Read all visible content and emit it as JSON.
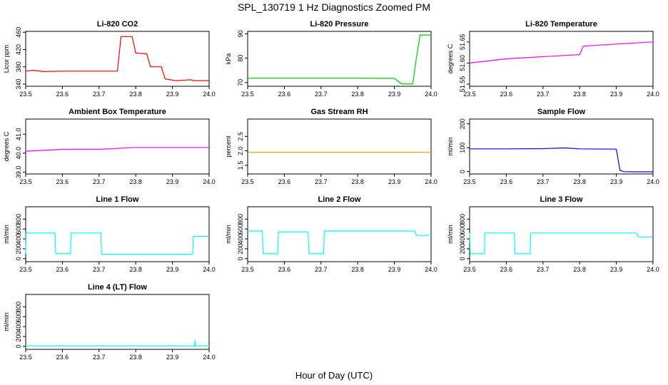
{
  "figure": {
    "title": "SPL_130719  1 Hz Diagnostics Zoomed PM",
    "xlabel": "Hour of Day (UTC)"
  },
  "chart_data": [
    {
      "type": "line",
      "title": "Li-820 CO2",
      "ylabel": "Licor ppm",
      "color": "#ff0000",
      "xlim": [
        23.5,
        24.0
      ],
      "ylim": [
        335,
        462
      ],
      "xticks": [
        "23.5",
        "23.6",
        "23.7",
        "23.8",
        "23.9",
        "24.0"
      ],
      "yticks": [
        340,
        380,
        420,
        460
      ],
      "x": [
        23.5,
        23.52,
        23.55,
        23.6,
        23.65,
        23.7,
        23.75,
        23.76,
        23.79,
        23.8,
        23.83,
        23.84,
        23.87,
        23.88,
        23.91,
        23.95,
        23.96,
        23.97,
        24.0
      ],
      "y": [
        370,
        372,
        369,
        370,
        370,
        370,
        370,
        450,
        450,
        412,
        410,
        380,
        380,
        352,
        348,
        350,
        348,
        348,
        348
      ]
    },
    {
      "type": "line",
      "title": "Li-820 Pressure",
      "ylabel": "kPa",
      "color": "#00cc00",
      "xlim": [
        23.5,
        24.0
      ],
      "ylim": [
        68.5,
        91
      ],
      "xticks": [
        "23.5",
        "23.6",
        "23.7",
        "23.8",
        "23.9",
        "24.0"
      ],
      "yticks": [
        70,
        80,
        90
      ],
      "x": [
        23.5,
        23.6,
        23.7,
        23.8,
        23.9,
        23.92,
        23.95,
        23.96,
        23.97,
        23.98,
        24.0
      ],
      "y": [
        71.8,
        71.8,
        71.8,
        71.8,
        71.7,
        69.5,
        69.4,
        80,
        89.5,
        89.5,
        89.5
      ]
    },
    {
      "type": "line",
      "title": "Li-820 Temperature",
      "ylabel": "degrees C",
      "color": "#ff00ff",
      "xlim": [
        23.5,
        24.0
      ],
      "ylim": [
        51.545,
        51.675
      ],
      "xticks": [
        "23.5",
        "23.6",
        "23.7",
        "23.8",
        "23.9",
        "24.0"
      ],
      "yticks": [
        "51.55",
        "51.60",
        "51.65"
      ],
      "x": [
        23.5,
        23.55,
        23.6,
        23.7,
        23.8,
        23.81,
        23.9,
        24.0
      ],
      "y": [
        51.6,
        51.605,
        51.61,
        51.615,
        51.62,
        51.64,
        51.645,
        51.65
      ]
    },
    {
      "type": "line",
      "title": "Ambient Box Temperature",
      "ylabel": "degrees C",
      "color": "#ff00ff",
      "xlim": [
        23.5,
        24.0
      ],
      "ylim": [
        38.9,
        41.8
      ],
      "xticks": [
        "23.5",
        "23.6",
        "23.7",
        "23.8",
        "23.9",
        "24.0"
      ],
      "yticks": [
        "39.0",
        "40.0",
        "41.0"
      ],
      "x": [
        23.5,
        23.6,
        23.7,
        23.8,
        23.9,
        24.0
      ],
      "y": [
        40.1,
        40.2,
        40.2,
        40.3,
        40.3,
        40.3
      ]
    },
    {
      "type": "line",
      "title": "Gas Stream RH",
      "ylabel": "percent",
      "color": "#ffa500",
      "xlim": [
        23.5,
        24.0
      ],
      "ylim": [
        1.2,
        3.1
      ],
      "xticks": [
        "23.5",
        "23.6",
        "23.7",
        "23.8",
        "23.9",
        "24.0"
      ],
      "yticks": [
        "1.5",
        "2.0",
        "2.5"
      ],
      "x": [
        23.5,
        23.6,
        23.7,
        23.8,
        23.9,
        24.0
      ],
      "y": [
        1.95,
        1.95,
        1.95,
        1.95,
        1.95,
        1.95
      ]
    },
    {
      "type": "line",
      "title": "Sample Flow",
      "ylabel": "ml/min",
      "color": "#0000ff",
      "xlim": [
        23.5,
        24.0
      ],
      "ylim": [
        -10,
        220
      ],
      "xticks": [
        "23.5",
        "23.6",
        "23.7",
        "23.8",
        "23.9",
        "24.0"
      ],
      "yticks": [
        0,
        100,
        200
      ],
      "x": [
        23.5,
        23.6,
        23.7,
        23.76,
        23.8,
        23.9,
        23.91,
        23.92,
        23.95,
        24.0
      ],
      "y": [
        95,
        95,
        96,
        99,
        95,
        94,
        5,
        0,
        -1,
        -1
      ]
    },
    {
      "type": "line",
      "title": "Line 1 Flow",
      "ylabel": "ml/min",
      "color": "#00ffff",
      "xlim": [
        23.5,
        24.0
      ],
      "ylim": [
        -60,
        1050
      ],
      "xticks": [
        "23.5",
        "23.6",
        "23.7",
        "23.8",
        "23.9",
        "24.0"
      ],
      "yticks": [
        0,
        200,
        400,
        600,
        800
      ],
      "x": [
        23.5,
        23.501,
        23.58,
        23.582,
        23.622,
        23.624,
        23.705,
        23.707,
        23.955,
        23.957,
        24.0
      ],
      "y": [
        100,
        520,
        520,
        100,
        100,
        520,
        520,
        90,
        90,
        450,
        450
      ]
    },
    {
      "type": "line",
      "title": "Line 2 Flow",
      "ylabel": "ml/min",
      "color": "#00ffff",
      "xlim": [
        23.5,
        24.0
      ],
      "ylim": [
        -60,
        1050
      ],
      "xticks": [
        "23.5",
        "23.6",
        "23.7",
        "23.8",
        "23.9",
        "24.0"
      ],
      "yticks": [
        0,
        200,
        400,
        600,
        800
      ],
      "x": [
        23.5,
        23.54,
        23.542,
        23.582,
        23.584,
        23.665,
        23.667,
        23.707,
        23.709,
        23.955,
        23.96,
        24.0
      ],
      "y": [
        560,
        560,
        100,
        100,
        540,
        540,
        100,
        100,
        560,
        560,
        470,
        470
      ]
    },
    {
      "type": "line",
      "title": "Line 3 Flow",
      "ylabel": "ml/min",
      "color": "#00ffff",
      "xlim": [
        23.5,
        24.0
      ],
      "ylim": [
        -60,
        1050
      ],
      "xticks": [
        "23.5",
        "23.6",
        "23.7",
        "23.8",
        "23.9",
        "24.0"
      ],
      "yticks": [
        0,
        200,
        400,
        600,
        800
      ],
      "x": [
        23.5,
        23.502,
        23.54,
        23.542,
        23.622,
        23.624,
        23.665,
        23.667,
        23.955,
        23.96,
        24.0
      ],
      "y": [
        520,
        100,
        100,
        520,
        520,
        100,
        100,
        520,
        520,
        440,
        440
      ]
    },
    {
      "type": "line",
      "title": "Line 4 (LT) Flow",
      "ylabel": "ml/min",
      "color": "#00ffff",
      "xlim": [
        23.5,
        24.0
      ],
      "ylim": [
        -60,
        1050
      ],
      "xticks": [
        "23.5",
        "23.6",
        "23.7",
        "23.8",
        "23.9",
        "24.0"
      ],
      "yticks": [
        0,
        200,
        400,
        600,
        800
      ],
      "x": [
        23.5,
        23.6,
        23.7,
        23.8,
        23.9,
        23.96,
        23.961,
        23.962,
        24.0
      ],
      "y": [
        10,
        10,
        10,
        10,
        10,
        10,
        130,
        10,
        10
      ]
    }
  ]
}
